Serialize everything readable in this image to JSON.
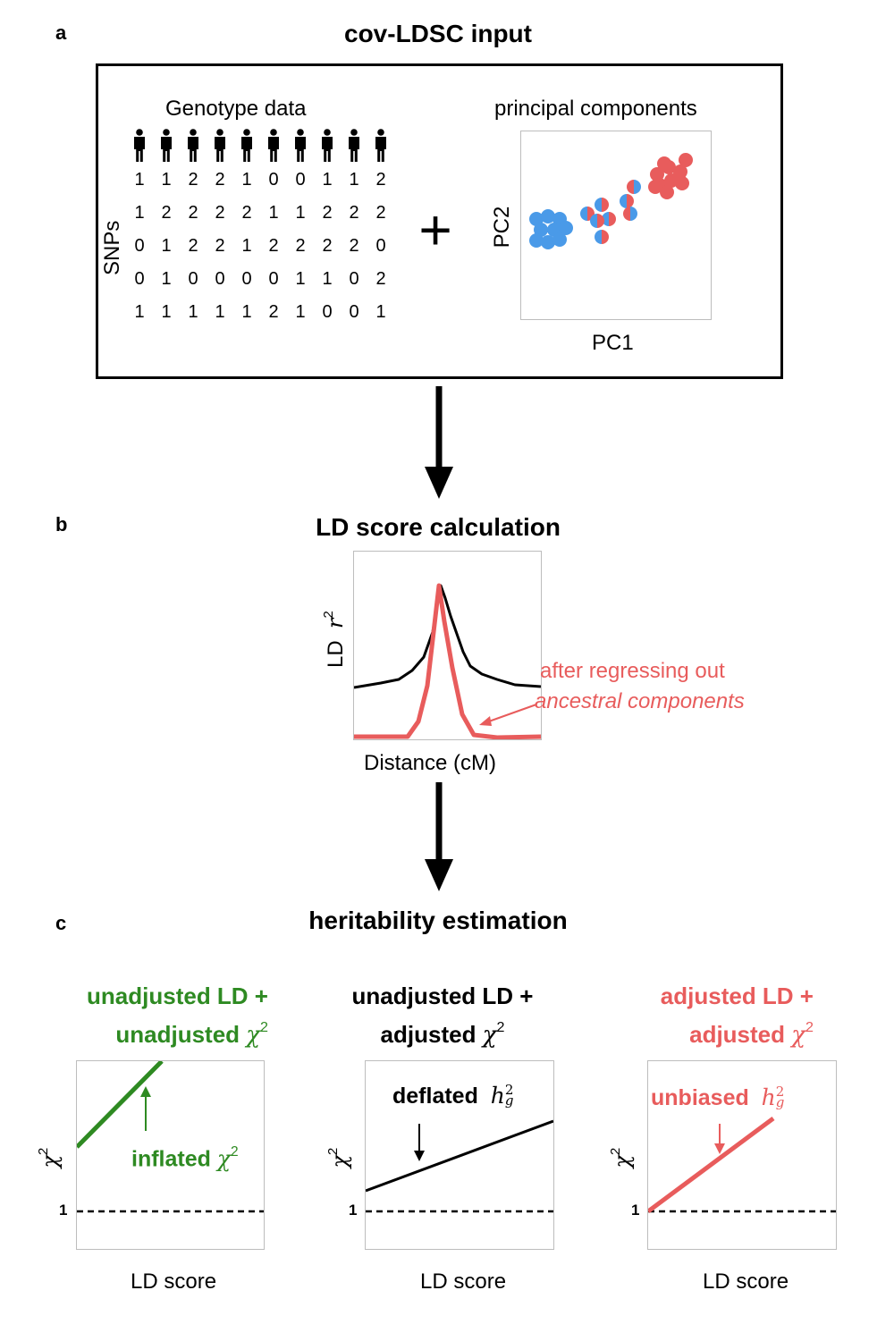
{
  "panel_a": {
    "letter": "a",
    "title": "cov-LDSC input",
    "genotype_label": "Genotype data",
    "snps_label": "SNPs",
    "plus": "+",
    "genotype_matrix": [
      [
        "1",
        "1",
        "2",
        "2",
        "1",
        "0",
        "0",
        "1",
        "1",
        "2"
      ],
      [
        "1",
        "2",
        "2",
        "2",
        "2",
        "1",
        "1",
        "2",
        "2",
        "2"
      ],
      [
        "0",
        "1",
        "2",
        "2",
        "1",
        "2",
        "2",
        "2",
        "2",
        "0"
      ],
      [
        "0",
        "1",
        "0",
        "0",
        "0",
        "0",
        "1",
        "1",
        "0",
        "2"
      ],
      [
        "1",
        "1",
        "1",
        "1",
        "1",
        "2",
        "1",
        "0",
        "0",
        "1"
      ]
    ],
    "pc_title": "principal components",
    "pc_xlabel": "PC1",
    "pc_ylabel": "PC2"
  },
  "panel_b": {
    "letter": "b",
    "title": "LD score calculation",
    "ylabel_text": "LD",
    "ylabel_symbol": "r",
    "ylabel_exp": "2",
    "xlabel": "Distance (cM)",
    "annotation_line1": "after regressing out",
    "annotation_line2": "ancestral components"
  },
  "panel_c": {
    "letter": "c",
    "title": "heritability estimation",
    "plots": [
      {
        "line1": "unadjusted LD +",
        "line2_text": "unadjusted",
        "annotation_text": "inflated",
        "xlabel": "LD score",
        "one_label": "1"
      },
      {
        "line1": "unadjusted LD +",
        "line2_text": "adjusted",
        "annotation_text": "deflated",
        "xlabel": "LD score",
        "one_label": "1"
      },
      {
        "line1": "adjusted LD +",
        "line2_text": "adjusted",
        "annotation_text": "unbiased",
        "xlabel": "LD score",
        "one_label": "1"
      }
    ],
    "chi_symbol": "χ",
    "square_exp": "2",
    "h_symbol": "h",
    "h_sub": "g"
  },
  "colors": {
    "blue": "#4a9ae8",
    "red": "#e85c5c",
    "green": "#2e8a22",
    "black": "#000000"
  }
}
